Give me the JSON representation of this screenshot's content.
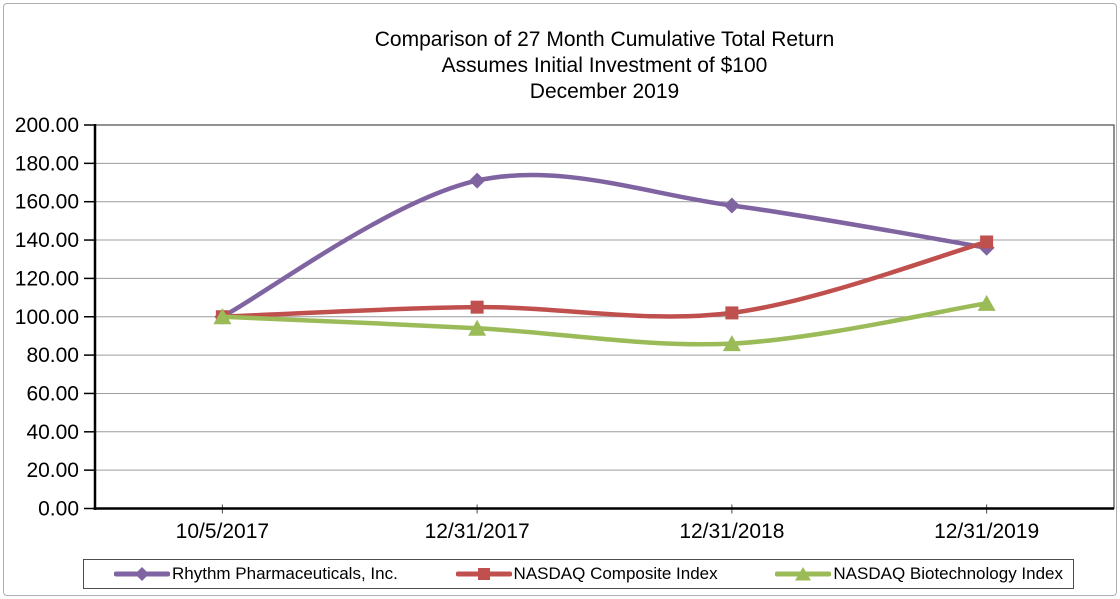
{
  "chart_data": {
    "type": "line",
    "title": "Comparison of 27 Month Cumulative Total Return",
    "subtitle": "Assumes Initial Investment of $100",
    "period_label": "December 2019",
    "categories": [
      "10/5/2017",
      "12/31/2017",
      "12/31/2018",
      "12/31/2019"
    ],
    "series": [
      {
        "name": "Rhythm Pharmaceuticals, Inc.",
        "color": "#8064A2",
        "marker": "diamond",
        "values": [
          100,
          171,
          158,
          136
        ]
      },
      {
        "name": "NASDAQ Composite Index",
        "color": "#C0504D",
        "marker": "square",
        "values": [
          100,
          105,
          102,
          139
        ]
      },
      {
        "name": "NASDAQ Biotechnology Index",
        "color": "#9BBB59",
        "marker": "triangle",
        "values": [
          100,
          94,
          86,
          107
        ]
      }
    ],
    "ylim": [
      0,
      200
    ],
    "ytick_step": 20,
    "ytick_labels": [
      "0.00",
      "20.00",
      "40.00",
      "60.00",
      "80.00",
      "100.00",
      "120.00",
      "140.00",
      "160.00",
      "180.00",
      "200.00"
    ],
    "grid": true,
    "smoothed": true,
    "legend_position": "bottom",
    "colors": {
      "gridline": "#9c9c9c",
      "axis": "#000000",
      "plot_border": "#4a4a4a",
      "tick": "#000000",
      "figure_border": "#b0b0b0",
      "legend_border": "#4d4d4d",
      "text": "#000000"
    }
  }
}
